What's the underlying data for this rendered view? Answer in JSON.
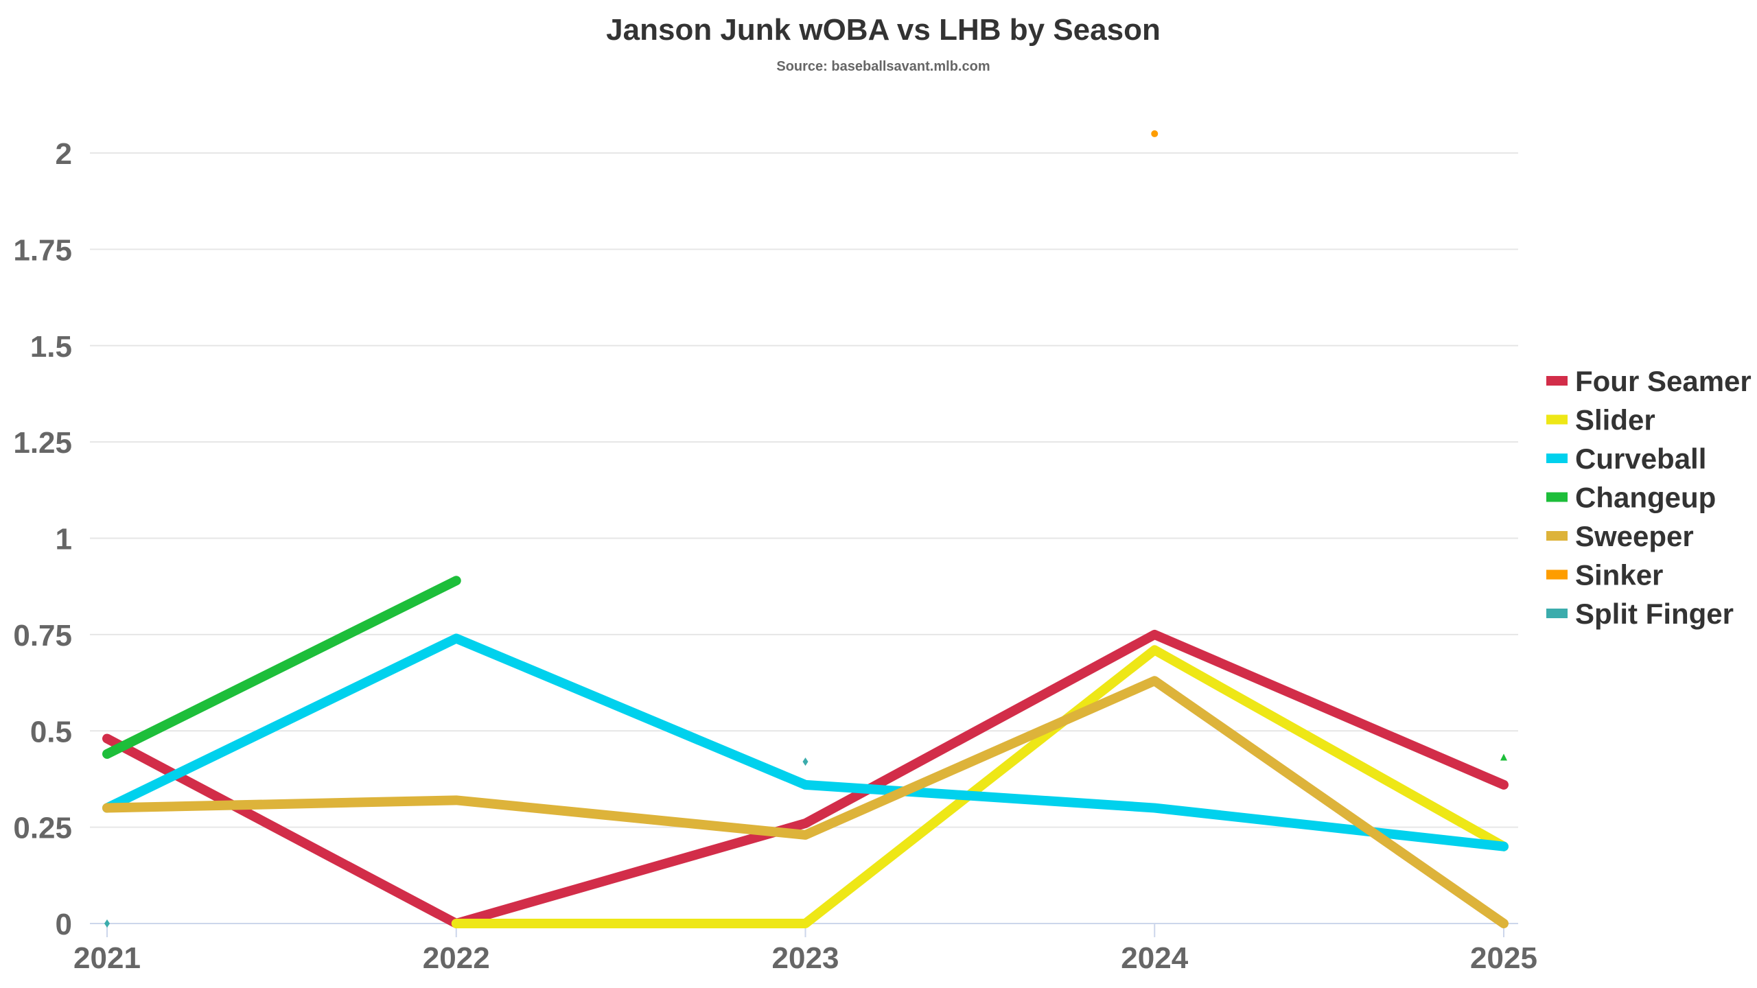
{
  "chart_data": {
    "type": "line",
    "title": "Janson Junk wOBA vs LHB by Season",
    "subtitle": "Source: baseballsavant.mlb.com",
    "xlabel": "",
    "ylabel": "",
    "categories": [
      "2021",
      "2022",
      "2023",
      "2024",
      "2025"
    ],
    "ylim": [
      0,
      2
    ],
    "yticks": [
      "0",
      "0.25",
      "0.5",
      "0.75",
      "1",
      "1.25",
      "1.5",
      "1.75",
      "2"
    ],
    "grid": true,
    "legend_position": "right",
    "series": [
      {
        "name": "Four Seamer",
        "color": "#d22d49",
        "values": [
          0.48,
          0.0,
          0.26,
          0.75,
          0.36
        ]
      },
      {
        "name": "Slider",
        "color": "#eee716",
        "values": [
          null,
          0.0,
          0.0,
          0.71,
          0.2
        ]
      },
      {
        "name": "Curveball",
        "color": "#00d1ed",
        "values": [
          0.3,
          0.74,
          0.36,
          0.3,
          0.2
        ]
      },
      {
        "name": "Changeup",
        "color": "#1dbe3a",
        "values": [
          0.44,
          0.89,
          null,
          null,
          0.43
        ]
      },
      {
        "name": "Sweeper",
        "color": "#ddb33a",
        "values": [
          0.3,
          0.32,
          0.23,
          0.63,
          0.0
        ]
      },
      {
        "name": "Sinker",
        "color": "#fe9d00",
        "values": [
          null,
          null,
          null,
          2.05,
          null
        ]
      },
      {
        "name": "Split Finger",
        "color": "#3bacac",
        "values": [
          0.0,
          null,
          0.42,
          null,
          null
        ]
      }
    ]
  }
}
